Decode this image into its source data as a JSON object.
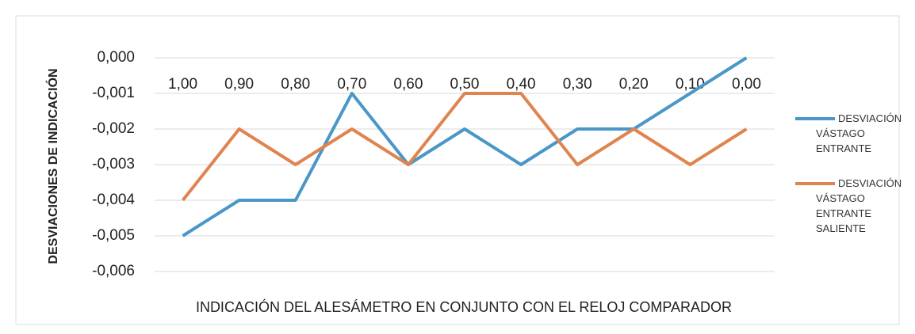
{
  "chart_data": {
    "type": "line",
    "y_label": "DESVIACIONES DE INDICACIÓN",
    "x_label": "INDICACIÓN DEL ALESÁMETRO EN CONJUNTO CON EL RELOJ COMPARADOR",
    "categories": [
      "1,00",
      "0,90",
      "0,80",
      "0,70",
      "0,60",
      "0,50",
      "0,40",
      "0,30",
      "0,20",
      "0,10",
      "0,00"
    ],
    "series": [
      {
        "name": "DESVIACIÓN VÁSTAGO ENTRANTE",
        "color": "#4a97c7",
        "values": [
          -0.005,
          -0.004,
          -0.004,
          -0.001,
          -0.003,
          -0.002,
          -0.003,
          -0.002,
          -0.002,
          -0.001,
          0
        ]
      },
      {
        "name": "DESVIACIÓN VÁSTAGO ENTRANTE SALIENTE",
        "color": "#e0844f",
        "values": [
          -0.004,
          -0.002,
          -0.003,
          -0.002,
          -0.003,
          -0.001,
          -0.001,
          -0.003,
          -0.002,
          -0.003,
          -0.002
        ]
      }
    ],
    "ylim": [
      -0.006,
      0
    ],
    "yticks": [
      {
        "value": 0,
        "label": "0,000"
      },
      {
        "value": -0.001,
        "label": "-0,001"
      },
      {
        "value": -0.002,
        "label": "-0,002"
      },
      {
        "value": -0.003,
        "label": "-0,003"
      },
      {
        "value": -0.004,
        "label": "-0,004"
      },
      {
        "value": -0.005,
        "label": "-0,005"
      },
      {
        "value": -0.006,
        "label": "-0,006"
      }
    ],
    "grid": true
  }
}
